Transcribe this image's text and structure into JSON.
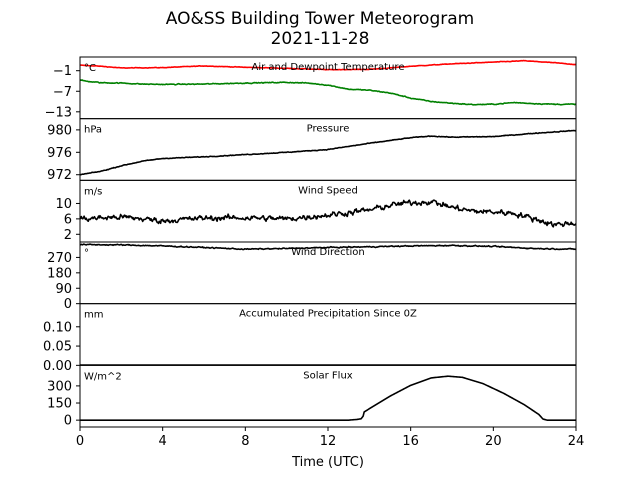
{
  "title": "AO&SS Building Tower Meteorogram",
  "subtitle": "2021-11-28",
  "xlabel": "Time (UTC)",
  "chart_data": {
    "type": "line",
    "x_range": [
      0,
      24
    ],
    "x_ticks": [
      0,
      4,
      8,
      12,
      16,
      20,
      24
    ],
    "panels": [
      {
        "title": "Air and Dewpoint Temperature",
        "unit": "°C",
        "ylim": [
          -15,
          3
        ],
        "yticks": [
          -13,
          -7,
          -1
        ],
        "series": [
          {
            "color": "#ff0000",
            "noise": 0.15,
            "points": [
              [
                0,
                0.6
              ],
              [
                1,
                0.3
              ],
              [
                2,
                -0.2
              ],
              [
                4,
                -0.1
              ],
              [
                6,
                0.4
              ],
              [
                8,
                0.0
              ],
              [
                10,
                -0.3
              ],
              [
                12,
                -0.7
              ],
              [
                14,
                -0.6
              ],
              [
                15,
                -0.2
              ],
              [
                16,
                0.3
              ],
              [
                18,
                1.0
              ],
              [
                20,
                1.5
              ],
              [
                21.5,
                1.9
              ],
              [
                23,
                1.3
              ],
              [
                24,
                0.8
              ]
            ]
          },
          {
            "color": "#008000",
            "noise": 0.25,
            "points": [
              [
                0,
                -3.8
              ],
              [
                0.5,
                -4.2
              ],
              [
                1,
                -4.5
              ],
              [
                2,
                -4.6
              ],
              [
                3,
                -4.9
              ],
              [
                4,
                -5.0
              ],
              [
                6,
                -4.9
              ],
              [
                8,
                -4.6
              ],
              [
                10,
                -4.4
              ],
              [
                11,
                -4.6
              ],
              [
                12,
                -5.2
              ],
              [
                13,
                -6.4
              ],
              [
                14,
                -6.7
              ],
              [
                15,
                -7.5
              ],
              [
                16,
                -9.0
              ],
              [
                17,
                -10.0
              ],
              [
                18,
                -10.5
              ],
              [
                19,
                -10.9
              ],
              [
                20,
                -10.8
              ],
              [
                21,
                -10.3
              ],
              [
                22,
                -10.6
              ],
              [
                23,
                -10.8
              ],
              [
                24,
                -10.8
              ]
            ]
          }
        ]
      },
      {
        "title": "Pressure",
        "unit": "hPa",
        "ylim": [
          971,
          982
        ],
        "yticks": [
          972,
          976,
          980
        ],
        "series": [
          {
            "color": "#000000",
            "noise": 0.12,
            "points": [
              [
                0,
                972.0
              ],
              [
                1,
                972.6
              ],
              [
                2,
                973.6
              ],
              [
                3,
                974.4
              ],
              [
                4,
                974.9
              ],
              [
                6,
                975.2
              ],
              [
                8,
                975.6
              ],
              [
                10,
                976.0
              ],
              [
                12,
                976.5
              ],
              [
                14,
                977.6
              ],
              [
                16,
                978.6
              ],
              [
                17,
                978.9
              ],
              [
                18,
                978.7
              ],
              [
                20,
                978.8
              ],
              [
                22,
                979.4
              ],
              [
                24,
                979.9
              ]
            ]
          }
        ]
      },
      {
        "title": "Wind Speed",
        "unit": "m/s",
        "ylim": [
          0,
          16
        ],
        "yticks": [
          2,
          6,
          10
        ],
        "series": [
          {
            "color": "#000000",
            "noise": 1.4,
            "points": [
              [
                0,
                6.0
              ],
              [
                2,
                6.5
              ],
              [
                4,
                5.5
              ],
              [
                6,
                6.2
              ],
              [
                8,
                6.3
              ],
              [
                10,
                6.0
              ],
              [
                12,
                7.0
              ],
              [
                14,
                8.3
              ],
              [
                15,
                9.5
              ],
              [
                16,
                10.2
              ],
              [
                17,
                10.5
              ],
              [
                18,
                9.0
              ],
              [
                19,
                8.0
              ],
              [
                20,
                7.8
              ],
              [
                21,
                7.5
              ],
              [
                22,
                6.0
              ],
              [
                23,
                4.5
              ],
              [
                24,
                5.0
              ]
            ]
          }
        ]
      },
      {
        "title": "Wind Direction",
        "unit": "°",
        "ylim": [
          0,
          360
        ],
        "yticks": [
          0,
          90,
          180,
          270
        ],
        "series": [
          {
            "color": "#000000",
            "noise": 6,
            "points": [
              [
                0,
                345
              ],
              [
                2,
                343
              ],
              [
                4,
                337
              ],
              [
                6,
                328
              ],
              [
                8,
                318
              ],
              [
                10,
                322
              ],
              [
                12,
                328
              ],
              [
                14,
                332
              ],
              [
                16,
                337
              ],
              [
                18,
                340
              ],
              [
                20,
                334
              ],
              [
                22,
                322
              ],
              [
                24,
                318
              ]
            ]
          }
        ]
      },
      {
        "title": "Accumulated Precipitation Since 0Z",
        "unit": "mm",
        "ylim": [
          0,
          0.16
        ],
        "yticks": [
          0.0,
          0.05,
          0.1
        ],
        "tick_format": 2,
        "series": [
          {
            "color": "#000000",
            "noise": 0,
            "width": 2.2,
            "points": [
              [
                0,
                0
              ],
              [
                24,
                0
              ]
            ]
          }
        ]
      },
      {
        "title": "Solar Flux",
        "unit": "W/m^2",
        "ylim": [
          -60,
          480
        ],
        "yticks": [
          0,
          150,
          300
        ],
        "series": [
          {
            "color": "#000000",
            "noise": 0,
            "points": [
              [
                0,
                0
              ],
              [
                13.0,
                0
              ],
              [
                13.4,
                6
              ],
              [
                13.6,
                12
              ],
              [
                13.7,
                35
              ],
              [
                13.75,
                72
              ],
              [
                14,
                100
              ],
              [
                15,
                210
              ],
              [
                16,
                305
              ],
              [
                17,
                370
              ],
              [
                17.8,
                385
              ],
              [
                18.5,
                375
              ],
              [
                19.5,
                320
              ],
              [
                20.5,
                235
              ],
              [
                21.5,
                135
              ],
              [
                22.2,
                50
              ],
              [
                22.4,
                10
              ],
              [
                22.6,
                0
              ],
              [
                24,
                0
              ]
            ]
          }
        ]
      }
    ]
  }
}
